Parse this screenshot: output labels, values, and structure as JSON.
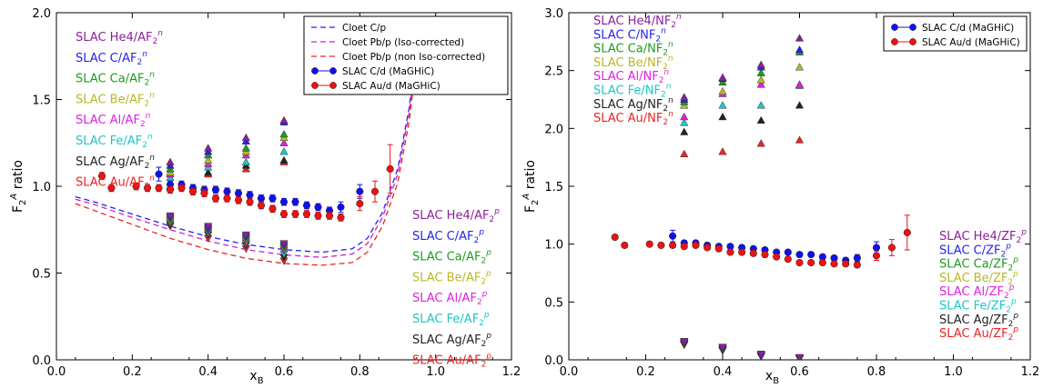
{
  "chart_data": [
    {
      "type": "scatter",
      "panel": "left",
      "xlabel": "x_B",
      "ylabel": "F_2^A ratio",
      "xlim": [
        0.0,
        1.2
      ],
      "ylim": [
        0.0,
        2.0
      ],
      "xticks": [
        "0.0",
        "0.2",
        "0.4",
        "0.6",
        "0.8",
        "1.0",
        "1.2"
      ],
      "yticks": [
        "0.0",
        "0.5",
        "1.0",
        "1.5",
        "2.0"
      ],
      "legend_position": "top-right",
      "legend": [
        {
          "label": "Cloet C/p",
          "style": "dashed",
          "color": "#2222ee"
        },
        {
          "label": "Cloet Pb/p (Iso-corrected)",
          "style": "dashed",
          "color": "#cc22cc"
        },
        {
          "label": "Cloet Pb/p (non Iso-corrected)",
          "style": "dashed",
          "color": "#ee2222"
        },
        {
          "label": "SLAC C/d (MaGHiC)",
          "style": "marker",
          "color": "#1010ee"
        },
        {
          "label": "SLAC Au/d (MaGHiC)",
          "style": "marker",
          "color": "#ee1111"
        }
      ],
      "series": [
        {
          "name": "Cloet C/p",
          "kind": "line",
          "dash": "6,4",
          "color": "#2222ee",
          "x": [
            0.05,
            0.1,
            0.2,
            0.3,
            0.4,
            0.5,
            0.6,
            0.7,
            0.78,
            0.82,
            0.86,
            0.9,
            0.93,
            0.96
          ],
          "y": [
            0.94,
            0.91,
            0.84,
            0.77,
            0.71,
            0.665,
            0.635,
            0.62,
            0.64,
            0.7,
            0.85,
            1.1,
            1.45,
            1.97
          ]
        },
        {
          "name": "Cloet Pb/p (Iso-corrected)",
          "kind": "line",
          "dash": "6,4",
          "color": "#cc22cc",
          "x": [
            0.05,
            0.1,
            0.2,
            0.3,
            0.4,
            0.5,
            0.6,
            0.7,
            0.78,
            0.82,
            0.86,
            0.9,
            0.93,
            0.96
          ],
          "y": [
            0.925,
            0.895,
            0.82,
            0.75,
            0.685,
            0.635,
            0.605,
            0.59,
            0.61,
            0.67,
            0.82,
            1.07,
            1.42,
            1.95
          ]
        },
        {
          "name": "Cloet Pb/p (non Iso-corrected)",
          "kind": "line",
          "dash": "6,4",
          "color": "#ee2222",
          "x": [
            0.05,
            0.1,
            0.2,
            0.3,
            0.4,
            0.5,
            0.6,
            0.7,
            0.78,
            0.82,
            0.86,
            0.9,
            0.93,
            0.96
          ],
          "y": [
            0.9,
            0.86,
            0.78,
            0.7,
            0.635,
            0.585,
            0.555,
            0.545,
            0.56,
            0.62,
            0.77,
            1.02,
            1.37,
            1.92
          ]
        },
        {
          "name": "SLAC C/d (MaGHiC)",
          "kind": "marker",
          "color": "#1010ee",
          "x": [
            0.27,
            0.3,
            0.33,
            0.36,
            0.39,
            0.42,
            0.45,
            0.48,
            0.51,
            0.54,
            0.57,
            0.6,
            0.63,
            0.66,
            0.69,
            0.72,
            0.75,
            0.8
          ],
          "y": [
            1.07,
            1.01,
            1.01,
            0.99,
            0.98,
            0.98,
            0.97,
            0.96,
            0.95,
            0.93,
            0.93,
            0.91,
            0.91,
            0.89,
            0.88,
            0.86,
            0.88,
            0.97
          ],
          "err": [
            0.04,
            0.02,
            0.02,
            0.02,
            0.02,
            0.02,
            0.02,
            0.02,
            0.02,
            0.02,
            0.02,
            0.02,
            0.02,
            0.02,
            0.02,
            0.02,
            0.03,
            0.04
          ]
        },
        {
          "name": "SLAC Au/d (MaGHiC)",
          "kind": "marker",
          "color": "#ee1111",
          "x": [
            0.12,
            0.145,
            0.21,
            0.24,
            0.27,
            0.3,
            0.33,
            0.36,
            0.39,
            0.42,
            0.45,
            0.48,
            0.51,
            0.54,
            0.57,
            0.6,
            0.63,
            0.66,
            0.69,
            0.72,
            0.75,
            0.8,
            0.84,
            0.88
          ],
          "y": [
            1.06,
            0.99,
            1.0,
            0.99,
            0.99,
            0.98,
            0.99,
            0.97,
            0.96,
            0.93,
            0.93,
            0.92,
            0.91,
            0.89,
            0.87,
            0.84,
            0.84,
            0.84,
            0.83,
            0.83,
            0.82,
            0.9,
            0.97,
            1.1
          ],
          "err": [
            0.02,
            0.02,
            0.02,
            0.02,
            0.02,
            0.02,
            0.02,
            0.02,
            0.02,
            0.02,
            0.02,
            0.02,
            0.02,
            0.02,
            0.02,
            0.02,
            0.02,
            0.02,
            0.02,
            0.02,
            0.02,
            0.04,
            0.06,
            0.14
          ]
        }
      ],
      "triangles": {
        "x": [
          0.3,
          0.4,
          0.5,
          0.6
        ],
        "groups": [
          {
            "ratio": "AF2n",
            "orientation": "up",
            "values": {
              "He4": [
                1.14,
                1.22,
                1.28,
                1.38
              ],
              "C": [
                1.12,
                1.2,
                1.26,
                1.37
              ],
              "Ca": [
                1.1,
                1.18,
                1.22,
                1.3
              ],
              "Be": [
                1.08,
                1.15,
                1.2,
                1.28
              ],
              "Al": [
                1.07,
                1.13,
                1.18,
                1.25
              ],
              "Fe": [
                1.05,
                1.11,
                1.14,
                1.2
              ],
              "Ag": [
                1.0,
                1.08,
                1.12,
                1.15
              ],
              "Au": [
                1.0,
                1.07,
                1.1,
                1.14
              ]
            }
          },
          {
            "ratio": "AF2p",
            "orientation": "down",
            "values": {
              "He4": [
                0.83,
                0.77,
                0.72,
                0.67
              ],
              "C": [
                0.82,
                0.76,
                0.71,
                0.66
              ],
              "Ca": [
                0.81,
                0.75,
                0.7,
                0.65
              ],
              "Be": [
                0.8,
                0.75,
                0.69,
                0.64
              ],
              "Al": [
                0.8,
                0.74,
                0.68,
                0.63
              ],
              "Fe": [
                0.79,
                0.73,
                0.67,
                0.61
              ],
              "Ag": [
                0.78,
                0.72,
                0.66,
                0.59
              ],
              "Au": [
                0.77,
                0.7,
                0.64,
                0.57
              ]
            }
          }
        ]
      }
    },
    {
      "type": "scatter",
      "panel": "right",
      "xlabel": "x_B",
      "ylabel": "F_2^A ratio",
      "xlim": [
        0.0,
        1.2
      ],
      "ylim": [
        0.0,
        3.0
      ],
      "xticks": [
        "0.0",
        "0.2",
        "0.4",
        "0.6",
        "0.8",
        "1.0",
        "1.2"
      ],
      "yticks": [
        "0.0",
        "0.5",
        "1.0",
        "1.5",
        "2.0",
        "2.5",
        "3.0"
      ],
      "legend_position": "top-right",
      "legend": [
        {
          "label": "SLAC C/d (MaGHiC)",
          "style": "marker",
          "color": "#1010ee"
        },
        {
          "label": "SLAC Au/d (MaGHiC)",
          "style": "marker",
          "color": "#ee1111"
        }
      ],
      "series": [
        {
          "name": "SLAC C/d (MaGHiC)",
          "kind": "marker",
          "color": "#1010ee",
          "x": [
            0.27,
            0.3,
            0.33,
            0.36,
            0.39,
            0.42,
            0.45,
            0.48,
            0.51,
            0.54,
            0.57,
            0.6,
            0.63,
            0.66,
            0.69,
            0.72,
            0.75,
            0.8
          ],
          "y": [
            1.07,
            1.01,
            1.01,
            0.99,
            0.98,
            0.98,
            0.97,
            0.96,
            0.95,
            0.93,
            0.93,
            0.91,
            0.91,
            0.89,
            0.88,
            0.86,
            0.88,
            0.97
          ],
          "err": [
            0.05,
            0.02,
            0.02,
            0.02,
            0.02,
            0.02,
            0.02,
            0.02,
            0.02,
            0.02,
            0.02,
            0.02,
            0.02,
            0.02,
            0.02,
            0.02,
            0.03,
            0.05
          ]
        },
        {
          "name": "SLAC Au/d (MaGHiC)",
          "kind": "marker",
          "color": "#ee1111",
          "x": [
            0.12,
            0.145,
            0.21,
            0.24,
            0.27,
            0.3,
            0.33,
            0.36,
            0.39,
            0.42,
            0.45,
            0.48,
            0.51,
            0.54,
            0.57,
            0.6,
            0.63,
            0.66,
            0.69,
            0.72,
            0.75,
            0.8,
            0.84,
            0.88
          ],
          "y": [
            1.06,
            0.99,
            1.0,
            0.99,
            0.99,
            0.98,
            0.99,
            0.97,
            0.96,
            0.93,
            0.93,
            0.92,
            0.91,
            0.89,
            0.87,
            0.84,
            0.84,
            0.84,
            0.83,
            0.83,
            0.82,
            0.9,
            0.97,
            1.1
          ],
          "err": [
            0.02,
            0.02,
            0.02,
            0.02,
            0.02,
            0.02,
            0.02,
            0.02,
            0.02,
            0.02,
            0.02,
            0.02,
            0.02,
            0.02,
            0.02,
            0.02,
            0.02,
            0.02,
            0.02,
            0.02,
            0.02,
            0.04,
            0.07,
            0.15
          ]
        }
      ],
      "triangles": {
        "x": [
          0.3,
          0.4,
          0.5,
          0.6
        ],
        "groups": [
          {
            "ratio": "NF2n",
            "orientation": "up",
            "values": {
              "He4": [
                2.27,
                2.44,
                2.55,
                2.78
              ],
              "C": [
                2.25,
                2.43,
                2.53,
                2.68
              ],
              "Ca": [
                2.23,
                2.4,
                2.48,
                2.66
              ],
              "Be": [
                2.2,
                2.32,
                2.42,
                2.53
              ],
              "Al": [
                2.1,
                2.3,
                2.38,
                2.38
              ],
              "Fe": [
                2.05,
                2.2,
                2.2,
                2.37
              ],
              "Ag": [
                1.97,
                2.1,
                2.07,
                2.2
              ],
              "Au": [
                1.78,
                1.8,
                1.87,
                1.9
              ]
            }
          },
          {
            "ratio": "ZF2p",
            "orientation": "down",
            "values": {
              "He4": [
                0.16,
                0.11,
                0.05,
                0.02
              ],
              "C": [
                0.15,
                0.1,
                0.04,
                0.02
              ],
              "Ca": [
                0.15,
                0.1,
                0.04,
                0.01
              ],
              "Be": [
                0.14,
                0.09,
                0.04,
                0.01
              ],
              "Al": [
                0.14,
                0.09,
                0.03,
                0.01
              ],
              "Fe": [
                0.14,
                0.09,
                0.03,
                0.01
              ],
              "Ag": [
                0.13,
                0.08,
                0.03,
                0.01
              ],
              "Au": [
                0.13,
                0.08,
                0.03,
                0.01
              ]
            }
          }
        ]
      }
    }
  ],
  "nuclei": [
    {
      "key": "He4",
      "color": "#8b1f9a"
    },
    {
      "key": "C",
      "color": "#2323ee"
    },
    {
      "key": "Ca",
      "color": "#1f9a1f"
    },
    {
      "key": "Be",
      "color": "#b8b826"
    },
    {
      "key": "Al",
      "color": "#e020e0"
    },
    {
      "key": "Fe",
      "color": "#1ec6c6"
    },
    {
      "key": "Ag",
      "color": "#222222"
    },
    {
      "key": "Au",
      "color": "#ee2222"
    }
  ],
  "annotations": {
    "left_n": [
      "SLAC He4/AF",
      "SLAC C/AF",
      "SLAC Ca/AF",
      "SLAC Be/AF",
      "SLAC Al/AF",
      "SLAC Fe/AF",
      "SLAC Ag/AF",
      "SLAC Au/AF"
    ],
    "left_p": [
      "SLAC He4/AF",
      "SLAC C/AF",
      "SLAC Ca/AF",
      "SLAC Be/AF",
      "SLAC Al/AF",
      "SLAC Fe/AF",
      "SLAC Ag/AF",
      "SLAC Au/AF"
    ],
    "right_n": [
      "SLAC He4/NF",
      "SLAC C/NF",
      "SLAC Ca/NF",
      "SLAC Be/NF",
      "SLAC Al/NF",
      "SLAC Fe/NF",
      "SLAC Ag/NF",
      "SLAC Au/NF"
    ],
    "right_p": [
      "SLAC He4/ZF",
      "SLAC C/ZF",
      "SLAC Ca/ZF",
      "SLAC Be/ZF",
      "SLAC Al/ZF",
      "SLAC Fe/ZF",
      "SLAC Ag/ZF",
      "SLAC Au/ZF"
    ],
    "sub2": "2",
    "sup_n": "n",
    "sup_p": "p"
  }
}
